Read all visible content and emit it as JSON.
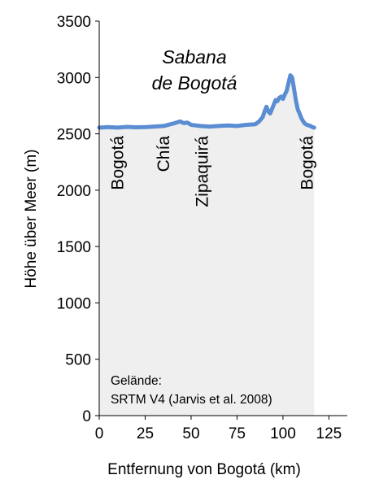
{
  "chart_data": {
    "type": "area",
    "xlabel": "Entfernung von Bogotá (km)",
    "ylabel": "Höhe über Meer (m)",
    "xlim": [
      0,
      135
    ],
    "ylim": [
      0,
      3500
    ],
    "xticks": [
      0,
      25,
      50,
      75,
      100,
      125
    ],
    "yticks": [
      0,
      500,
      1000,
      1500,
      2000,
      2500,
      3000,
      3500
    ],
    "grid": false,
    "legend": "none",
    "colors": {
      "line": "#5b8dd3",
      "fill": "#efefef"
    },
    "annotation": {
      "line1": "Sabana",
      "line2": "de Bogotá"
    },
    "places": [
      {
        "label": "Bogotá",
        "x": 10
      },
      {
        "label": "Chía",
        "x": 35
      },
      {
        "label": "Zipaquirá",
        "x": 56
      },
      {
        "label": "Bogotá",
        "x": 113
      }
    ],
    "source": {
      "line1": "Gelände:",
      "line2": "SRTM V4 (Jarvis et al. 2008)"
    },
    "series": [
      {
        "x": [
          0,
          5,
          10,
          15,
          20,
          25,
          30,
          35,
          40,
          42,
          44,
          46,
          48,
          50,
          55,
          60,
          65,
          70,
          75,
          80,
          85,
          87,
          89,
          90,
          91,
          92,
          93,
          94,
          95,
          96,
          97,
          98,
          99,
          100,
          101,
          102,
          103,
          104,
          105,
          106,
          107,
          108,
          109,
          110,
          111,
          112,
          113,
          114,
          115,
          116,
          117
        ],
        "y": [
          2555,
          2560,
          2555,
          2562,
          2558,
          2560,
          2565,
          2570,
          2590,
          2600,
          2610,
          2595,
          2600,
          2580,
          2570,
          2565,
          2570,
          2575,
          2570,
          2580,
          2585,
          2610,
          2650,
          2700,
          2740,
          2700,
          2680,
          2720,
          2760,
          2800,
          2790,
          2820,
          2830,
          2810,
          2850,
          2880,
          2950,
          3020,
          3000,
          2900,
          2800,
          2720,
          2680,
          2640,
          2610,
          2590,
          2580,
          2575,
          2570,
          2560,
          2555
        ]
      }
    ]
  }
}
